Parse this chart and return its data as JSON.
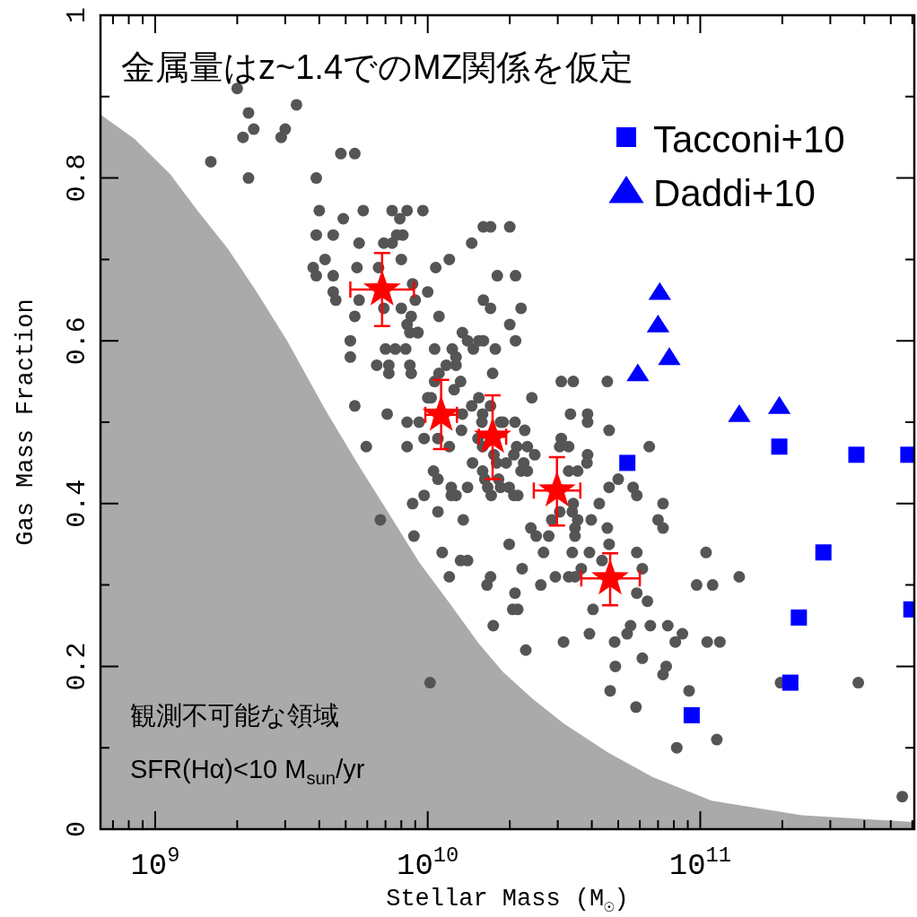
{
  "chart_data": {
    "type": "scatter",
    "xlabel": "Stellar Mass (M$_{☉}$)",
    "ylabel": "Gas Mass Fraction",
    "log": "x",
    "xlim": [
      630000000.0,
      610000000000.0
    ],
    "ylim": [
      0,
      1
    ],
    "xticks": [
      {
        "value": 700000000.0,
        "label": null
      },
      {
        "value": 800000000.0,
        "label": null
      },
      {
        "value": 900000000.0,
        "label": null
      },
      {
        "value": 1000000000.0,
        "label": "10$^{9}$"
      },
      {
        "value": 2000000000.0,
        "label": null
      },
      {
        "value": 3000000000.0,
        "label": null
      },
      {
        "value": 4000000000.0,
        "label": null
      },
      {
        "value": 5000000000.0,
        "label": null
      },
      {
        "value": 6000000000.0,
        "label": null
      },
      {
        "value": 7000000000.0,
        "label": null
      },
      {
        "value": 8000000000.0,
        "label": null
      },
      {
        "value": 9000000000.0,
        "label": null
      },
      {
        "value": 10000000000.0,
        "label": "10$^{10}$"
      },
      {
        "value": 20000000000.0,
        "label": null
      },
      {
        "value": 30000000000.0,
        "label": null
      },
      {
        "value": 40000000000.0,
        "label": null
      },
      {
        "value": 50000000000.0,
        "label": null
      },
      {
        "value": 60000000000.0,
        "label": null
      },
      {
        "value": 70000000000.0,
        "label": null
      },
      {
        "value": 80000000000.0,
        "label": null
      },
      {
        "value": 90000000000.0,
        "label": null
      },
      {
        "value": 100000000000.0,
        "label": "10$^{11}$"
      },
      {
        "value": 200000000000.0,
        "label": null
      },
      {
        "value": 300000000000.0,
        "label": null
      },
      {
        "value": 400000000000.0,
        "label": null
      },
      {
        "value": 500000000000.0,
        "label": null
      },
      {
        "value": 600000000000.0,
        "label": null
      }
    ],
    "yticks": [
      0,
      {
        "value": 0.1,
        "label": null
      },
      0.2,
      {
        "value": 0.3,
        "label": null
      },
      0.4,
      {
        "value": 0.5,
        "label": null
      },
      0.6,
      {
        "value": 0.7,
        "label": null
      },
      0.8,
      {
        "value": 0.9,
        "label": null
      },
      1
    ],
    "legend": "top right",
    "annotations": [
      "金属量はz~1.4でのMZ関係を仮定",
      "観測不可能な領域",
      "SFR(Hα)<10 M$_{sun}$/yr"
    ],
    "series": [
      {
        "type": "area",
        "color": "#aaaaaa",
        "x": [
          630000000.0,
          840000000.0,
          1140000000.0,
          1430000000.0,
          1840000000.0,
          2370000000.0,
          3050000000.0,
          4230000000.0,
          5600000000.0,
          7200000000.0,
          9300000000.0,
          12000000000.0,
          15400000000.0,
          18900000000.0,
          24300000000.0,
          31500000000.0,
          46000000000.0,
          67000000000.0,
          110000000000.0,
          236000000000.0,
          585000000000.0,
          610000000000.0
        ],
        "values": [
          0.878,
          0.848,
          0.804,
          0.76,
          0.714,
          0.659,
          0.6,
          0.514,
          0.446,
          0.388,
          0.328,
          0.278,
          0.228,
          0.193,
          0.16,
          0.13,
          0.094,
          0.064,
          0.035,
          0.017,
          0.009,
          0.008
        ]
      },
      {
        "type": "scatter",
        "marker": "circle",
        "color": "#555555",
        "x": [
          2000000000.0,
          3300000000.0,
          2200000000.0,
          2300000000.0,
          2100000000.0,
          3000000000.0,
          2900000000.0,
          4800000000.0,
          5400000000.0,
          1600000000.0,
          2200000000.0,
          3900000000.0,
          4000000000.0,
          5800000000.0,
          4900000000.0,
          7400000000.0,
          7900000000.0,
          8400000000.0,
          9600000000.0,
          3900000000.0,
          4500000000.0,
          5600000000.0,
          6900000000.0,
          7400000000.0,
          7700000000.0,
          8100000000.0,
          14500000000.0,
          16000000000.0,
          17000000000.0,
          20000000000.0,
          4200000000.0,
          3800000000.0,
          3900000000.0,
          4500000000.0,
          5500000000.0,
          6600000000.0,
          8000000000.0,
          10700000000.0,
          12000000000.0,
          18000000000.0,
          21000000000.0,
          8800000000.0,
          10000000000.0,
          4500000000.0,
          4600000000.0,
          5600000000.0,
          5400000000.0,
          6900000000.0,
          8000000000.0,
          9000000000.0,
          11000000000.0,
          8700000000.0,
          8400000000.0,
          8600000000.0,
          9200000000.0,
          16000000000.0,
          17000000000.0,
          22000000000.0,
          20000000000.0,
          21000000000.0,
          5200000000.0,
          5200000000.0,
          6500000000.0,
          7000000000.0,
          7600000000.0,
          8300000000.0,
          7200000000.0,
          8600000000.0,
          7200000000.0,
          8700000000.0,
          10600000000.0,
          12300000000.0,
          13400000000.0,
          14000000000.0,
          15400000000.0,
          16000000000.0,
          14700000000.0,
          17700000000.0,
          12700000000.0,
          12700000000.0,
          11700000000.0,
          11000000000.0,
          17300000000.0,
          13200000000.0,
          12500000000.0,
          10000000000.0,
          10300000000.0,
          14500000000.0,
          15400000000.0,
          17000000000.0,
          24100000000.0,
          5400000000.0,
          9200000000.0,
          10600000000.0,
          30900000000.0,
          34200000000.0,
          45600000000.0,
          7100000000.0,
          8400000000.0,
          9300000000.0,
          13400000000.0,
          15900000000.0,
          15800000000.0,
          18500000000.0,
          18900000000.0,
          20900000000.0,
          22700000000.0,
          33400000000.0,
          38600000000.0,
          38600000000.0,
          46300000000.0,
          5950000000.0,
          8400000000.0,
          9700000000.0,
          10900000000.0,
          13300000000.0,
          12000000000.0,
          15300000000.0,
          15900000000.0,
          17500000000.0,
          21200000000.0,
          20700000000.0,
          23200000000.0,
          24700000000.0,
          30900000000.0,
          30500000000.0,
          32900000000.0,
          38600000000.0,
          38400000000.0,
          35500000000.0,
          32900000000.0,
          65000000000.0,
          14600000000.0,
          15900000000.0,
          17900000000.0,
          19400000000.0,
          22500000000.0,
          22000000000.0,
          23200000000.0,
          10500000000.0,
          10900000000.0,
          16200000000.0,
          18200000000.0,
          16600000000.0,
          18500000000.0,
          19900000000.0,
          21400000000.0,
          20700000000.0,
          17100000000.0,
          14000000000.0,
          12200000000.0,
          12700000000.0,
          12200000000.0,
          9700000000.0,
          8800000000.0,
          10900000000.0,
          13500000000.0,
          6700000000.0,
          50000000000.0,
          46300000000.0,
          56700000000.0,
          58500000000.0,
          73000000000.0,
          42600000000.0,
          34200000000.0,
          33900000000.0,
          35500000000.0,
          28500000000.0,
          30500000000.0,
          39800000000.0,
          45600000000.0,
          70000000000.0,
          73000000000.0,
          23900000000.0,
          25000000000.0,
          27800000000.0,
          34700000000.0,
          34700000000.0,
          8900000000.0,
          11300000000.0,
          13200000000.0,
          14000000000.0,
          19900000000.0,
          26600000000.0,
          33900000000.0,
          39200000000.0,
          46300000000.0,
          58500000000.0,
          61300000000.0,
          43600000000.0,
          22200000000.0,
          36600000000.0,
          12000000000.0,
          16500000000.0,
          17000000000.0,
          20900000000.0,
          26000000000.0,
          29400000000.0,
          32900000000.0,
          34700000000.0,
          58500000000.0,
          64000000000.0,
          40400000000.0,
          21400000000.0,
          20500000000.0,
          17400000000.0,
          39200000000.0,
          48500000000.0,
          53900000000.0,
          55500000000.0,
          65600000000.0,
          76000000000.0,
          81000000000.0,
          86000000000.0,
          97000000000.0,
          31500000000.0,
          105000000000.0,
          139000000000.0,
          111000000000.0,
          106000000000.0,
          118000000000.0,
          22900000000.0,
          61300000000.0,
          48800000000.0,
          75000000000.0,
          73000000000.0,
          46700000000.0,
          91000000000.0,
          58100000000.0,
          197000000000.0,
          380000000000.0,
          115000000000.0,
          82000000000.0,
          551000000000.0,
          10200000000.0
        ],
        "values": [
          0.91,
          0.89,
          0.88,
          0.86,
          0.85,
          0.86,
          0.85,
          0.83,
          0.83,
          0.82,
          0.8,
          0.8,
          0.76,
          0.76,
          0.75,
          0.76,
          0.75,
          0.76,
          0.76,
          0.73,
          0.73,
          0.72,
          0.72,
          0.72,
          0.73,
          0.73,
          0.72,
          0.74,
          0.74,
          0.74,
          0.7,
          0.69,
          0.68,
          0.68,
          0.69,
          0.69,
          0.7,
          0.69,
          0.7,
          0.68,
          0.68,
          0.67,
          0.66,
          0.66,
          0.65,
          0.65,
          0.63,
          0.64,
          0.64,
          0.65,
          0.63,
          0.63,
          0.62,
          0.61,
          0.61,
          0.65,
          0.64,
          0.64,
          0.62,
          0.6,
          0.6,
          0.58,
          0.57,
          0.59,
          0.59,
          0.59,
          0.57,
          0.57,
          0.56,
          0.56,
          0.59,
          0.59,
          0.61,
          0.6,
          0.6,
          0.6,
          0.59,
          0.59,
          0.58,
          0.57,
          0.57,
          0.56,
          0.56,
          0.55,
          0.54,
          0.53,
          0.53,
          0.52,
          0.53,
          0.52,
          0.53,
          0.52,
          0.61,
          0.55,
          0.55,
          0.55,
          0.55,
          0.51,
          0.5,
          0.5,
          0.51,
          0.51,
          0.5,
          0.5,
          0.5,
          0.5,
          0.49,
          0.51,
          0.51,
          0.5,
          0.49,
          0.47,
          0.47,
          0.48,
          0.48,
          0.49,
          0.47,
          0.48,
          0.47,
          0.46,
          0.47,
          0.46,
          0.47,
          0.46,
          0.48,
          0.47,
          0.47,
          0.46,
          0.45,
          0.44,
          0.44,
          0.47,
          0.45,
          0.44,
          0.45,
          0.45,
          0.45,
          0.44,
          0.44,
          0.44,
          0.43,
          0.43,
          0.43,
          0.42,
          0.42,
          0.42,
          0.41,
          0.41,
          0.41,
          0.42,
          0.42,
          0.41,
          0.41,
          0.41,
          0.4,
          0.39,
          0.38,
          0.38,
          0.43,
          0.42,
          0.42,
          0.41,
          0.4,
          0.4,
          0.4,
          0.39,
          0.38,
          0.38,
          0.39,
          0.38,
          0.37,
          0.38,
          0.37,
          0.37,
          0.36,
          0.36,
          0.37,
          0.36,
          0.36,
          0.34,
          0.33,
          0.33,
          0.35,
          0.34,
          0.34,
          0.34,
          0.35,
          0.34,
          0.32,
          0.33,
          0.32,
          0.32,
          0.31,
          0.3,
          0.31,
          0.29,
          0.3,
          0.31,
          0.31,
          0.31,
          0.29,
          0.28,
          0.27,
          0.27,
          0.27,
          0.25,
          0.24,
          0.23,
          0.24,
          0.25,
          0.25,
          0.25,
          0.23,
          0.24,
          0.3,
          0.23,
          0.34,
          0.31,
          0.3,
          0.23,
          0.23,
          0.22,
          0.21,
          0.2,
          0.2,
          0.19,
          0.17,
          0.17,
          0.15,
          0.18,
          0.18,
          0.11,
          0.1,
          0.04,
          0.18
        ]
      },
      {
        "type": "scatter",
        "marker": "square",
        "name": "Tacconi+10",
        "color": "#0000ff",
        "x": [
          54000000000.0,
          195000000000.0,
          374000000000.0,
          580000000000.0,
          283000000000.0,
          230000000000.0,
          214000000000.0,
          93000000000.0,
          595000000000.0
        ],
        "values": [
          0.45,
          0.47,
          0.46,
          0.46,
          0.34,
          0.26,
          0.18,
          0.14,
          0.27
        ]
      },
      {
        "type": "scatter",
        "marker": "triangle",
        "name": "Daddi+10",
        "color": "#0000ff",
        "x": [
          71000000000.0,
          70000000000.0,
          77000000000.0,
          59000000000.0,
          139000000000.0,
          195000000000.0
        ],
        "values": [
          0.66,
          0.62,
          0.58,
          0.56,
          0.51,
          0.52
        ]
      },
      {
        "type": "scatter",
        "marker": "star",
        "color": "#ff0000",
        "x": [
          6800000000.0,
          11200000000.0,
          17300000000.0,
          29800000000.0,
          46700000000.0
        ],
        "values": [
          0.663,
          0.509,
          0.482,
          0.416,
          0.308
        ],
        "errors": [
          [
            0.618,
            0.708
          ],
          [
            0.467,
            0.552
          ],
          [
            0.43,
            0.533
          ],
          [
            0.373,
            0.457
          ],
          [
            0.275,
            0.339
          ]
        ],
        "xerrors": [
          [
            5200000000.0,
            8900000000.0
          ],
          [
            9800000000.0,
            12800000000.0
          ],
          [
            15400000000.0,
            19400000000.0
          ],
          [
            24500000000.0,
            36300000000.0
          ],
          [
            36600000000.0,
            60000000000.0
          ]
        ]
      }
    ]
  }
}
